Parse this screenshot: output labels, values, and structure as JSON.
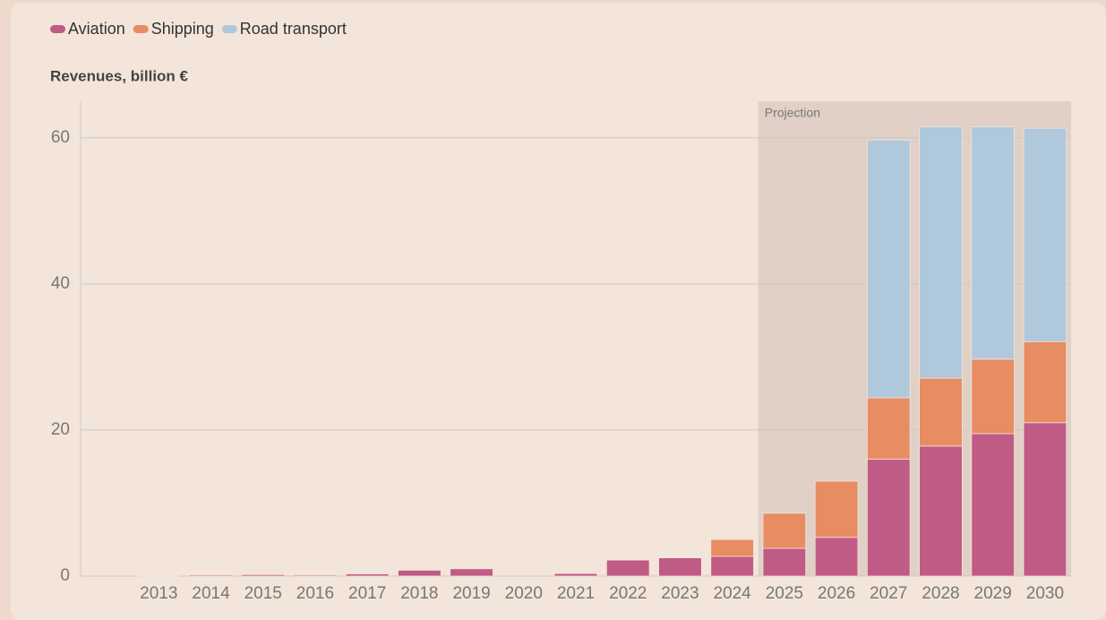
{
  "chart_data": {
    "type": "stacked_bar",
    "title": "Revenues, billion €",
    "categories": [
      null,
      "2013",
      "2014",
      "2015",
      "2016",
      "2017",
      "2018",
      "2019",
      "2020",
      "2021",
      "2022",
      "2023",
      "2024",
      "2025",
      "2026",
      "2027",
      "2028",
      "2029",
      "2030"
    ],
    "series": [
      {
        "name": "Aviation",
        "color": "#bf5b84",
        "values": [
          0,
          0.1,
          0.15,
          0.2,
          0.15,
          0.3,
          0.8,
          1.0,
          0,
          0.35,
          2.2,
          2.5,
          2.7,
          3.8,
          5.3,
          16.0,
          17.8,
          19.5,
          21.0
        ]
      },
      {
        "name": "Shipping",
        "color": "#e88c64",
        "values": [
          0,
          0,
          0,
          0,
          0,
          0,
          0,
          0,
          0,
          0,
          0,
          0,
          2.3,
          4.8,
          7.7,
          8.4,
          9.3,
          10.2,
          11.1
        ]
      },
      {
        "name": "Road transport",
        "color": "#b0c8dc",
        "values": [
          0,
          0,
          0,
          0,
          0,
          0,
          0,
          0,
          0,
          0,
          0,
          0,
          0,
          0,
          0,
          35.3,
          34.4,
          31.8,
          29.2
        ]
      }
    ],
    "ylim": [
      0,
      65
    ],
    "yticks": [
      0,
      20,
      40,
      60
    ],
    "grid": true,
    "projection": {
      "label": "Projection",
      "from": "2025",
      "to": "2030"
    }
  }
}
